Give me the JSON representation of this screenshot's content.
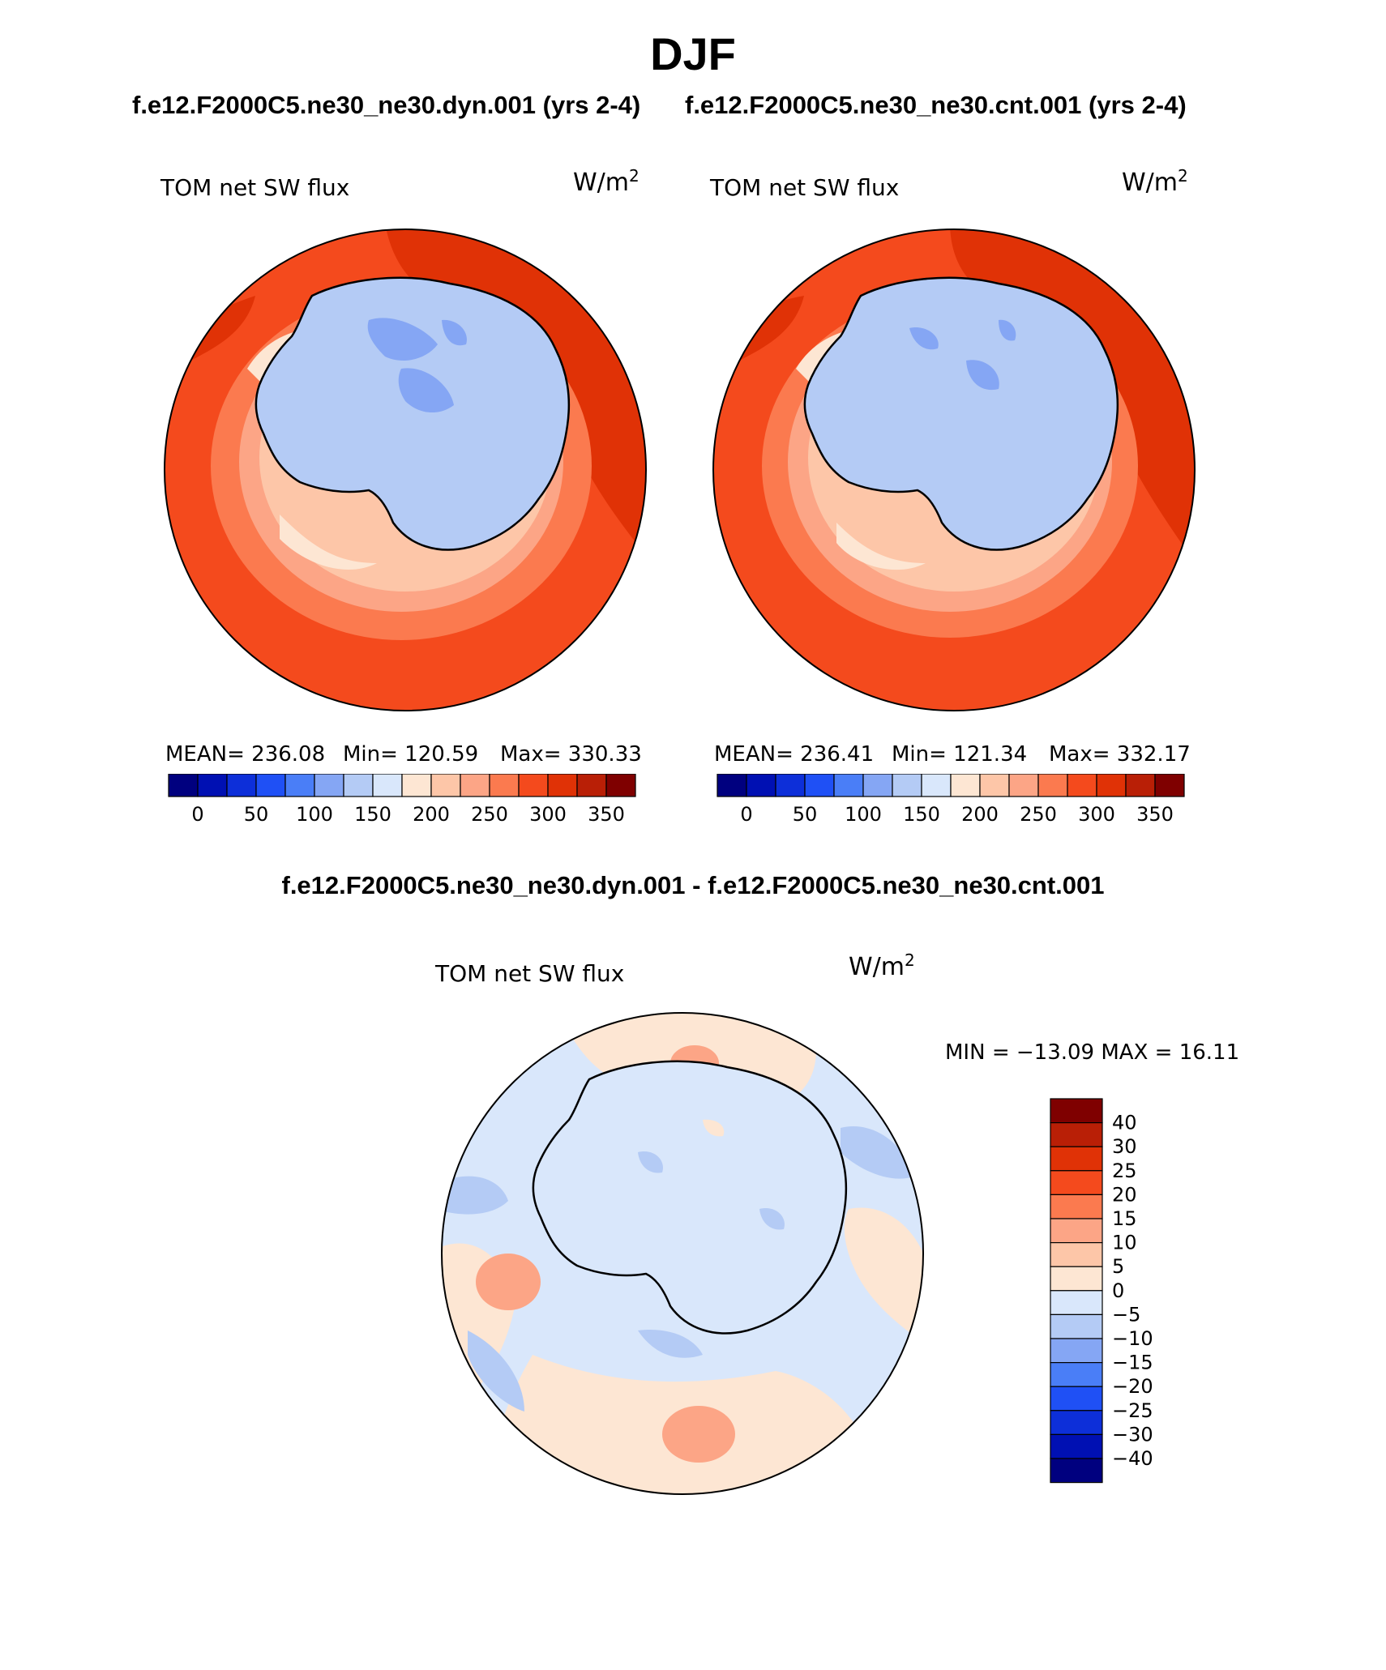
{
  "header": {
    "season": "DJF",
    "left_case": "f.e12.F2000C5.ne30_ne30.dyn.001 (yrs 2-4)",
    "right_case": "f.e12.F2000C5.ne30_ne30.cnt.001 (yrs 2-4)",
    "diff_title": "f.e12.F2000C5.ne30_ne30.dyn.001 - f.e12.F2000C5.ne30_ne30.cnt.001"
  },
  "chart_data": [
    {
      "type": "heatmap",
      "projection": "south-polar-stereographic",
      "variable": "TOM net SW flux",
      "units": "W/m2",
      "case": "f.e12.F2000C5.ne30_ne30.dyn.001 (yrs 2-4)",
      "stats": {
        "mean_label": "MEAN= 236.08",
        "min_label": "Min= 120.59",
        "max_label": "Max= 330.33",
        "mean": 236.08,
        "min": 120.59,
        "max": 330.33
      },
      "colorbar": {
        "orientation": "horizontal",
        "levels": [
          0,
          25,
          50,
          75,
          100,
          125,
          150,
          175,
          200,
          225,
          250,
          275,
          300,
          325,
          350
        ],
        "tick_labels": [
          "0",
          "50",
          "100",
          "150",
          "200",
          "250",
          "300",
          "350"
        ],
        "colors": [
          "#00007f",
          "#0010b3",
          "#0d2fd9",
          "#1f50f5",
          "#4a7ef7",
          "#85a6f4",
          "#b4cbf5",
          "#d9e7fb",
          "#fde6d3",
          "#fdc6a8",
          "#fca586",
          "#fb7a4f",
          "#f44a1d",
          "#e03206",
          "#b91f06",
          "#7f0000"
        ]
      }
    },
    {
      "type": "heatmap",
      "projection": "south-polar-stereographic",
      "variable": "TOM net SW flux",
      "units": "W/m2",
      "case": "f.e12.F2000C5.ne30_ne30.cnt.001 (yrs 2-4)",
      "stats": {
        "mean_label": "MEAN= 236.41",
        "min_label": "Min= 121.34",
        "max_label": "Max= 332.17",
        "mean": 236.41,
        "min": 121.34,
        "max": 332.17
      },
      "colorbar": {
        "orientation": "horizontal",
        "levels": [
          0,
          25,
          50,
          75,
          100,
          125,
          150,
          175,
          200,
          225,
          250,
          275,
          300,
          325,
          350
        ],
        "tick_labels": [
          "0",
          "50",
          "100",
          "150",
          "200",
          "250",
          "300",
          "350"
        ],
        "colors": [
          "#00007f",
          "#0010b3",
          "#0d2fd9",
          "#1f50f5",
          "#4a7ef7",
          "#85a6f4",
          "#b4cbf5",
          "#d9e7fb",
          "#fde6d3",
          "#fdc6a8",
          "#fca586",
          "#fb7a4f",
          "#f44a1d",
          "#e03206",
          "#b91f06",
          "#7f0000"
        ]
      }
    },
    {
      "type": "heatmap",
      "projection": "south-polar-stereographic",
      "variable": "TOM net SW flux",
      "units": "W/m2",
      "case": "difference",
      "stats": {
        "min_max_label": "MIN = −13.09 MAX =   16.11",
        "min": -13.09,
        "max": 16.11
      },
      "colorbar": {
        "orientation": "vertical",
        "tick_labels": [
          "40",
          "30",
          "25",
          "20",
          "15",
          "10",
          "5",
          "0",
          "−5",
          "−10",
          "−15",
          "−20",
          "−25",
          "−30",
          "−40"
        ],
        "colors": [
          "#7f0000",
          "#b91f06",
          "#e03206",
          "#f44a1d",
          "#fb7a4f",
          "#fca586",
          "#fdc6a8",
          "#fde6d3",
          "#d9e7fb",
          "#b4cbf5",
          "#85a6f4",
          "#4a7ef7",
          "#1f50f5",
          "#0d2fd9",
          "#0010b3",
          "#00007f"
        ]
      }
    }
  ]
}
